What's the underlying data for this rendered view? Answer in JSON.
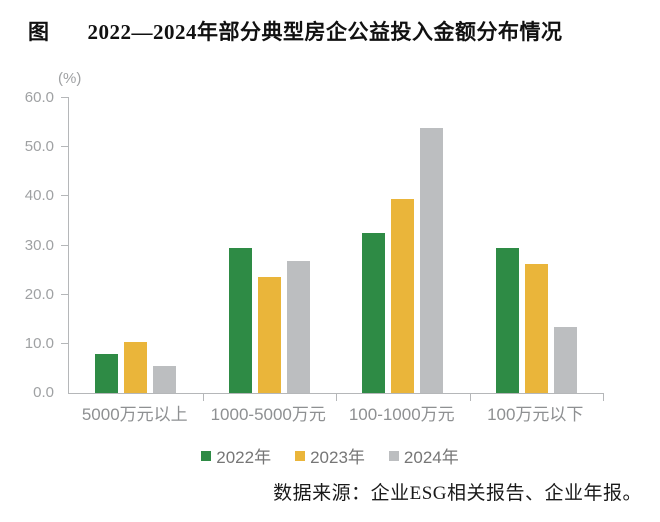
{
  "title": {
    "prefix": "图",
    "text": "2022—2024年部分典型房企公益投入金额分布情况"
  },
  "source_note": "数据来源：企业ESG相关报告、企业年报。",
  "colors": {
    "series_2022": "#2E8B45",
    "series_2023": "#EAB53A",
    "series_2024": "#BCBEC0",
    "axis": "#B5B7B9",
    "axis_text": "#9FA1A3"
  },
  "chart_data": {
    "type": "bar",
    "title": "2022—2024年部分典型房企公益投入金额分布情况",
    "unit_label": "(%)",
    "xlabel": "",
    "ylabel": "(%)",
    "categories": [
      "5000万元以上",
      "1000-5000万元",
      "100-1000万元",
      "100万元以下"
    ],
    "series": [
      {
        "name": "2022年",
        "color": "#2E8B45",
        "values": [
          8.0,
          29.5,
          32.5,
          29.5
        ]
      },
      {
        "name": "2023年",
        "color": "#EAB53A",
        "values": [
          10.3,
          23.5,
          39.5,
          26.3
        ]
      },
      {
        "name": "2024年",
        "color": "#BCBEC0",
        "values": [
          5.4,
          26.9,
          53.8,
          13.4
        ]
      }
    ],
    "y_axis": {
      "min": 0,
      "max": 60,
      "step": 10,
      "tick_labels": [
        "0.0",
        "10.0",
        "20.0",
        "30.0",
        "40.0",
        "50.0",
        "60.0"
      ]
    },
    "ylim": [
      0,
      60
    ],
    "grid": false,
    "legend_position": "bottom"
  }
}
